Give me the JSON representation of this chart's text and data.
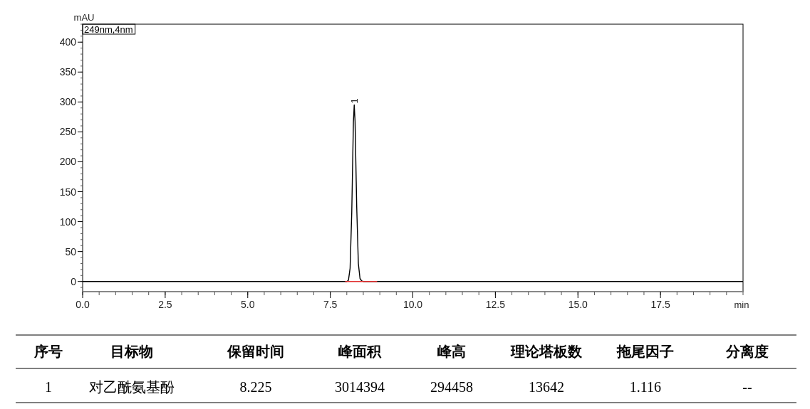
{
  "chart_data": {
    "type": "line",
    "xlabel": "min",
    "ylabel": "mAU",
    "xlim": [
      0,
      20
    ],
    "ylim": [
      -17,
      430
    ],
    "xticks": [
      {
        "value": 0,
        "label": "0.0"
      },
      {
        "value": 2.5,
        "label": "2.5"
      },
      {
        "value": 5,
        "label": "5.0"
      },
      {
        "value": 7.5,
        "label": "7.5"
      },
      {
        "value": 10,
        "label": "10.0"
      },
      {
        "value": 12.5,
        "label": "12.5"
      },
      {
        "value": 15,
        "label": "15.0"
      },
      {
        "value": 17.5,
        "label": "17.5"
      }
    ],
    "yticks": [
      0,
      50,
      100,
      150,
      200,
      250,
      300,
      350,
      400
    ],
    "series": [
      {
        "color": "#000000",
        "x": [
          0,
          7.8,
          7.95,
          8.0,
          8.05,
          8.1,
          8.15,
          8.2,
          8.225,
          8.25,
          8.3,
          8.35,
          8.4,
          8.45,
          8.5,
          8.6,
          20
        ],
        "values": [
          0,
          0,
          0,
          0,
          2,
          22,
          115,
          266,
          295,
          268,
          125,
          30,
          5,
          1,
          0,
          0,
          0
        ]
      },
      {
        "color": "#e03030",
        "x": [
          7.95,
          8.92
        ],
        "values": [
          0,
          0
        ]
      }
    ],
    "annotations": [
      {
        "text": "1",
        "x": 8.225,
        "y": 295
      },
      "249nm,4nm",
      "序号",
      "目标物",
      "保留时间",
      "峰面积",
      "峰高",
      "理论塔板数",
      "拖尾因子",
      "分离度",
      "1",
      "对乙酰氨基酚",
      "8.225",
      "3014394",
      "294458",
      "13642",
      "1.116",
      "--"
    ]
  }
}
